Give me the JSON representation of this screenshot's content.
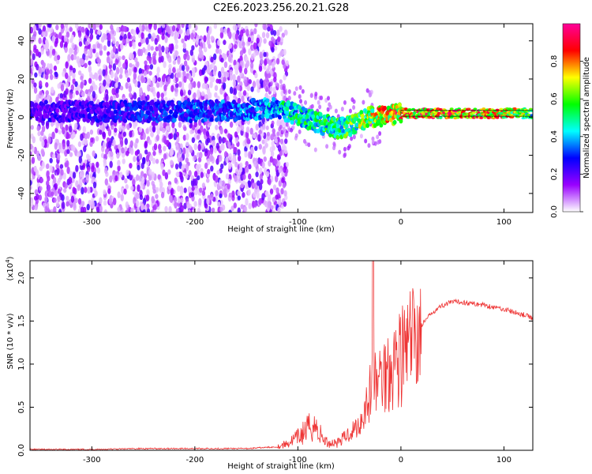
{
  "title": "C2E6.2023.256.20.21.G28",
  "chart_data": [
    {
      "type": "heatmap",
      "xlabel": "Height of straight line (km)",
      "ylabel": "Frequency (Hz)",
      "xlim": [
        -360,
        128
      ],
      "ylim": [
        -50,
        49
      ],
      "xticks": [
        -300,
        -200,
        -100,
        0,
        100
      ],
      "yticks": [
        -40,
        -20,
        0,
        20,
        40
      ],
      "colorbar": {
        "label": "Normalized spectral amplitude",
        "range": [
          0,
          1
        ],
        "ticks": [
          "0.0",
          "0.2",
          "0.4",
          "0.6",
          "0.8"
        ],
        "colors": [
          "#ffffff",
          "#9900ff",
          "#0000ff",
          "#00ffff",
          "#00ff00",
          "#ffff00",
          "#ff0000",
          "#ff0099"
        ]
      },
      "ridge": [
        {
          "x": -360,
          "y": 3,
          "amp": 0.25
        },
        {
          "x": -270,
          "y": 3,
          "amp": 0.3
        },
        {
          "x": -200,
          "y": 3,
          "amp": 0.35
        },
        {
          "x": -140,
          "y": 4,
          "amp": 0.4
        },
        {
          "x": -120,
          "y": 5,
          "amp": 0.5
        },
        {
          "x": -100,
          "y": 1,
          "amp": 0.55
        },
        {
          "x": -80,
          "y": -3,
          "amp": 0.55
        },
        {
          "x": -60,
          "y": -6,
          "amp": 0.6
        },
        {
          "x": -45,
          "y": -4,
          "amp": 0.65
        },
        {
          "x": -30,
          "y": 0,
          "amp": 0.75
        },
        {
          "x": -10,
          "y": 1,
          "amp": 0.85
        },
        {
          "x": 0,
          "y": 2,
          "amp": 0.9
        },
        {
          "x": 50,
          "y": 2,
          "amp": 0.9
        },
        {
          "x": 100,
          "y": 2,
          "amp": 0.85
        },
        {
          "x": 128,
          "y": 2,
          "amp": 0.6
        }
      ],
      "noise_band": {
        "x_start": -360,
        "x_end": -130
      }
    },
    {
      "type": "line",
      "xlabel": "Height of straight line (km)",
      "ylabel": "SNR (10 * v/v)",
      "scale_label": "(x10",
      "scale_exponent": "4",
      "scale_close": ")",
      "xlim": [
        -360,
        128
      ],
      "ylim": [
        0,
        2.2
      ],
      "xticks": [
        -300,
        -200,
        -100,
        0,
        100
      ],
      "yticks": [
        "0.0",
        "0.5",
        "1.0",
        "1.5",
        "2.0"
      ],
      "line_color": "#ee3333",
      "series": [
        {
          "x": [
            -360,
            -300,
            -250,
            -200,
            -150,
            -120,
            -110,
            -100,
            -90,
            -85,
            -80,
            -75,
            -70,
            -60,
            -50,
            -40,
            -35,
            -30,
            -28,
            -25,
            -20,
            -15,
            -10,
            -5,
            0,
            5,
            10,
            15,
            20,
            25,
            30,
            40,
            50,
            60,
            70,
            80,
            90,
            100,
            110,
            120,
            128
          ],
          "y": [
            0.01,
            0.01,
            0.02,
            0.02,
            0.02,
            0.04,
            0.08,
            0.15,
            0.25,
            0.3,
            0.22,
            0.12,
            0.08,
            0.1,
            0.2,
            0.3,
            0.5,
            0.65,
            0.8,
            0.75,
            0.85,
            0.9,
            1.0,
            1.05,
            1.1,
            1.15,
            1.25,
            1.35,
            1.45,
            1.52,
            1.6,
            1.68,
            1.72,
            1.72,
            1.7,
            1.69,
            1.66,
            1.64,
            1.6,
            1.57,
            1.53
          ]
        }
      ]
    }
  ]
}
